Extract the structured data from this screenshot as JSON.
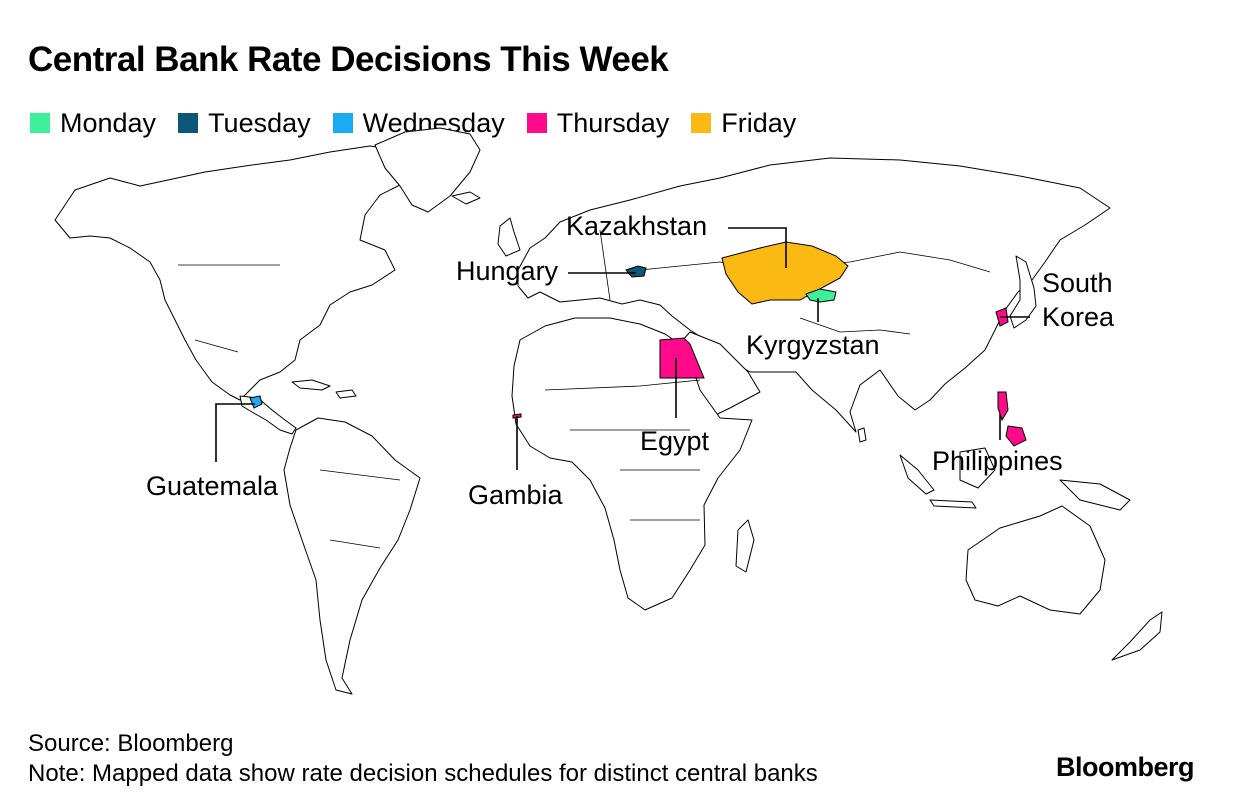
{
  "title": "Central Bank Rate Decisions This Week",
  "legend": [
    {
      "label": "Monday",
      "color": "#3df09a"
    },
    {
      "label": "Tuesday",
      "color": "#0b5775"
    },
    {
      "label": "Wednesday",
      "color": "#1aabf4"
    },
    {
      "label": "Thursday",
      "color": "#ff0a8a"
    },
    {
      "label": "Friday",
      "color": "#fbb913"
    }
  ],
  "countries": [
    {
      "name": "Kyrgyzstan",
      "day": "Monday"
    },
    {
      "name": "Hungary",
      "day": "Tuesday"
    },
    {
      "name": "Guatemala",
      "day": "Wednesday"
    },
    {
      "name": "Egypt",
      "day": "Thursday"
    },
    {
      "name": "South Korea",
      "day": "Thursday"
    },
    {
      "name": "Philippines",
      "day": "Thursday"
    },
    {
      "name": "Gambia",
      "day": "Thursday"
    },
    {
      "name": "Kazakhstan",
      "day": "Friday"
    }
  ],
  "labels": {
    "kazakhstan": "Kazakhstan",
    "hungary": "Hungary",
    "south_korea_1": "South",
    "south_korea_2": "Korea",
    "kyrgyzstan": "Kyrgyzstan",
    "egypt": "Egypt",
    "guatemala": "Guatemala",
    "gambia": "Gambia",
    "philippines": "Philippines"
  },
  "footer": {
    "source": "Source: Bloomberg",
    "note": "Note: Mapped data show rate decision schedules for distinct central banks"
  },
  "brand": "Bloomberg"
}
